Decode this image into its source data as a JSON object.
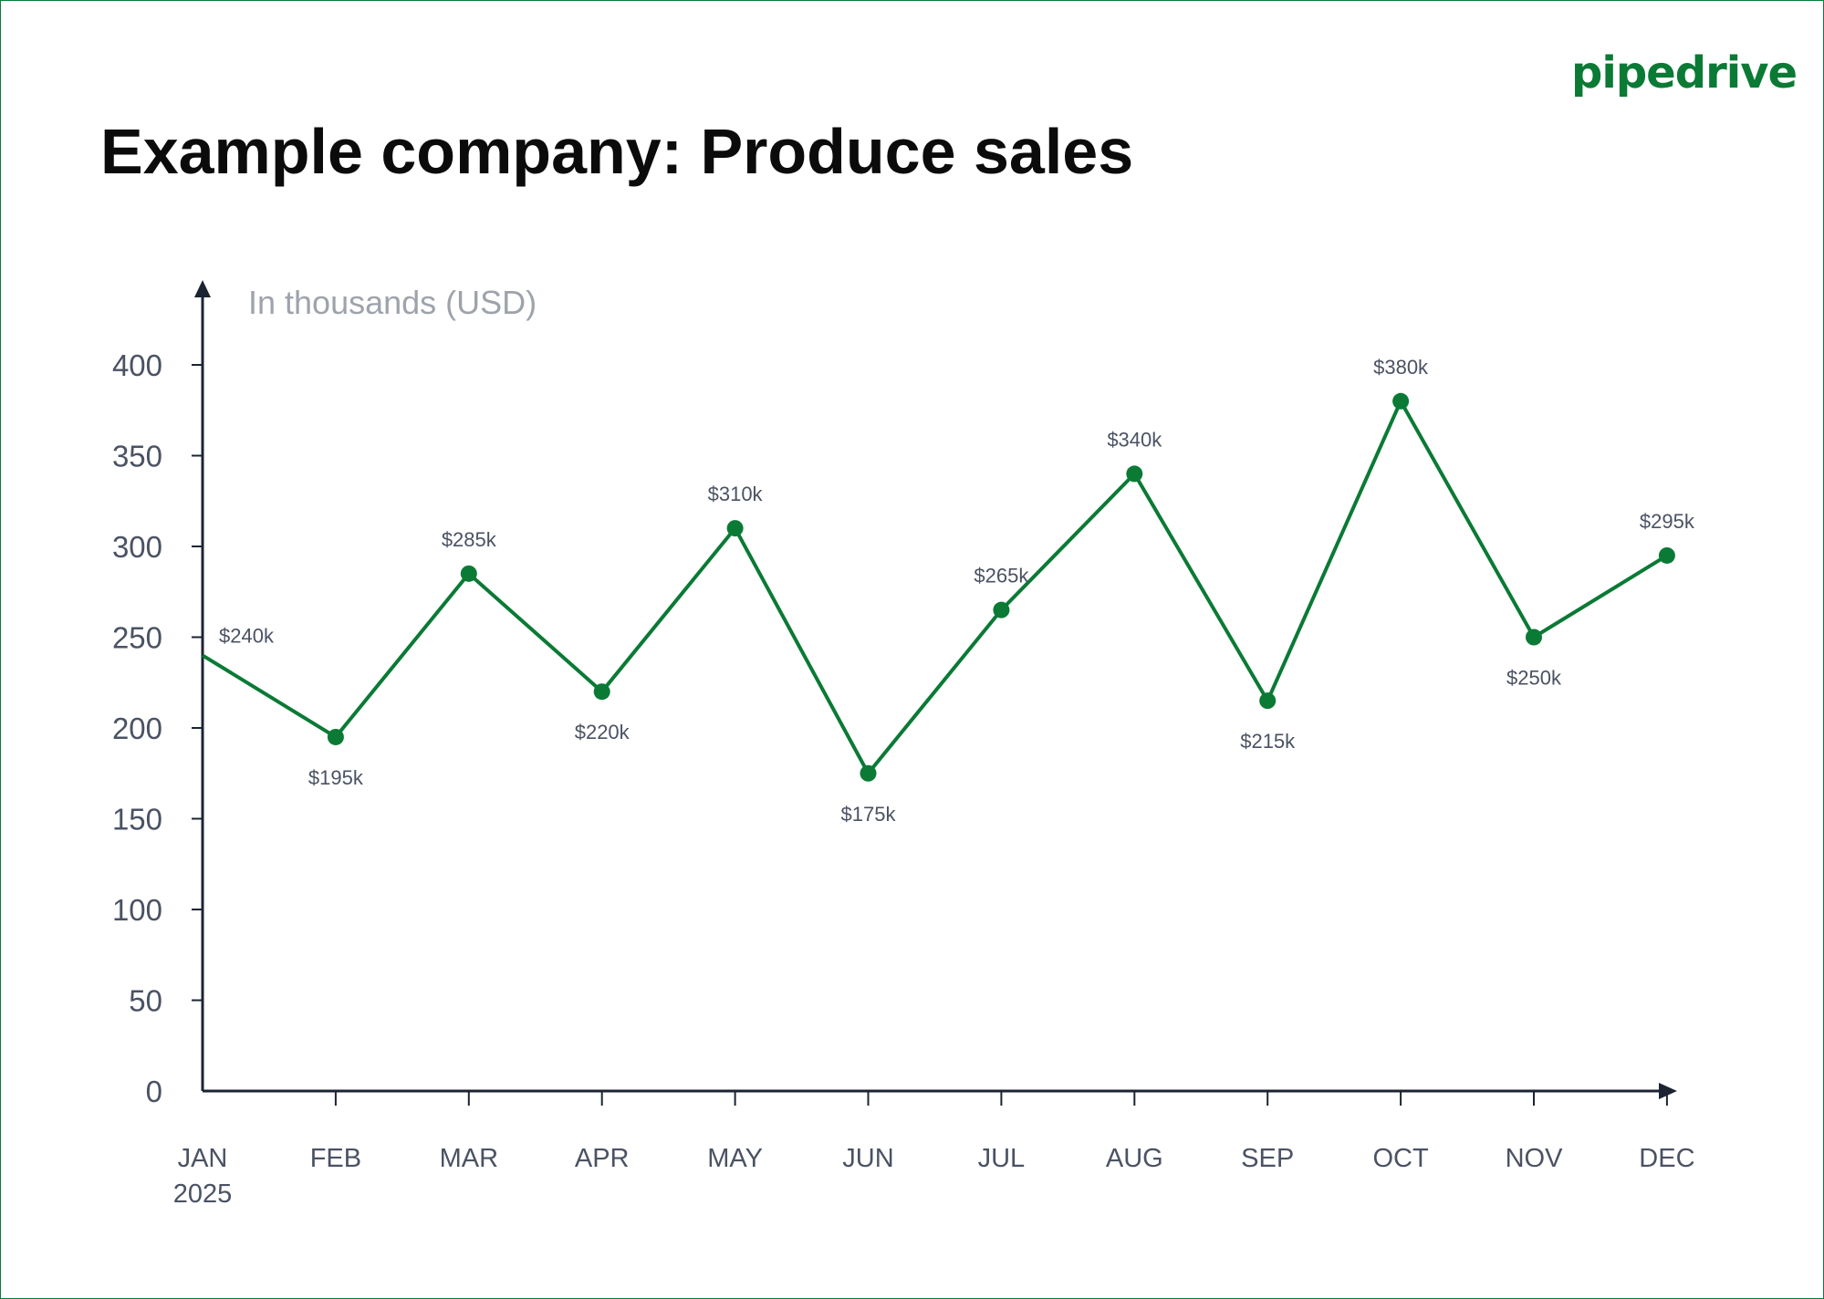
{
  "logo": "pipedrive",
  "title": "Example company: Produce sales",
  "colors": {
    "line": "#0a7a35",
    "axis": "#1c2433",
    "tick_text": "#4a5263",
    "unit_text": "#9ea3ab",
    "border": "#0a7a35"
  },
  "chart_data": {
    "type": "line",
    "title": "Example company: Produce sales",
    "ylabel": "In thousands (USD)",
    "xlabel": "",
    "categories": [
      "JAN",
      "FEB",
      "MAR",
      "APR",
      "MAY",
      "JUN",
      "JUL",
      "AUG",
      "SEP",
      "OCT",
      "NOV",
      "DEC"
    ],
    "year_label": "2025",
    "values": [
      240,
      195,
      285,
      220,
      310,
      175,
      265,
      340,
      215,
      380,
      250,
      295
    ],
    "data_labels": [
      "$240k",
      "$195k",
      "$285k",
      "$220k",
      "$310k",
      "$175k",
      "$265k",
      "$340k",
      "$215k",
      "$380k",
      "$250k",
      "$295k"
    ],
    "label_placement": [
      "right",
      "below",
      "above",
      "below",
      "above",
      "below",
      "above",
      "above",
      "below",
      "above",
      "below",
      "above"
    ],
    "yticks": [
      0,
      50,
      100,
      150,
      200,
      250,
      300,
      350,
      400
    ],
    "ylim": [
      0,
      400
    ],
    "grid": false,
    "markers": true
  }
}
